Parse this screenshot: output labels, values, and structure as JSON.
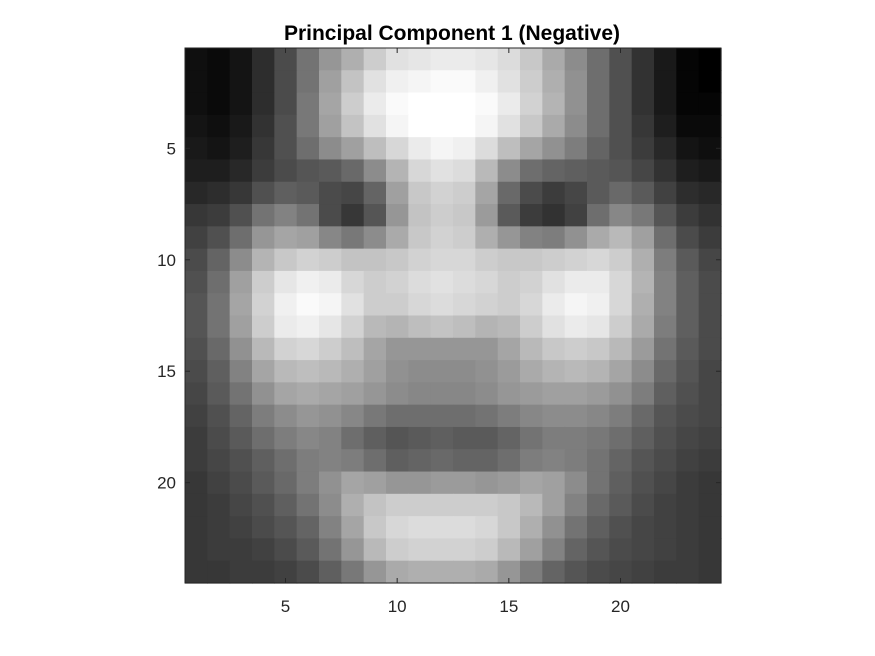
{
  "chart_data": {
    "type": "heatmap",
    "title": "Principal Component 1 (Negative)",
    "xlabel": "",
    "ylabel": "",
    "colormap": "gray",
    "xlim": [
      0.5,
      24.5
    ],
    "ylim": [
      0.5,
      24.5
    ],
    "y_direction": "reverse",
    "grid": false,
    "x_ticks": [
      5,
      10,
      15,
      20
    ],
    "y_ticks": [
      5,
      10,
      15,
      20
    ],
    "x_tick_labels": [
      "5",
      "10",
      "15",
      "20"
    ],
    "y_tick_labels": [
      "5",
      "10",
      "15",
      "20"
    ],
    "z_range": [
      0,
      255
    ],
    "values": [
      [
        15,
        10,
        20,
        45,
        75,
        115,
        150,
        175,
        205,
        225,
        230,
        235,
        235,
        230,
        220,
        200,
        170,
        140,
        110,
        80,
        50,
        25,
        5,
        0
      ],
      [
        15,
        10,
        20,
        45,
        75,
        115,
        160,
        195,
        225,
        240,
        245,
        250,
        250,
        240,
        225,
        205,
        175,
        145,
        110,
        80,
        50,
        25,
        5,
        0
      ],
      [
        15,
        10,
        20,
        45,
        75,
        120,
        165,
        205,
        235,
        250,
        255,
        255,
        255,
        250,
        235,
        210,
        180,
        145,
        110,
        80,
        50,
        25,
        5,
        5
      ],
      [
        20,
        15,
        25,
        50,
        80,
        120,
        160,
        195,
        225,
        245,
        255,
        255,
        255,
        245,
        225,
        200,
        170,
        140,
        110,
        80,
        55,
        30,
        10,
        10
      ],
      [
        25,
        20,
        30,
        55,
        80,
        110,
        140,
        160,
        190,
        215,
        235,
        245,
        240,
        220,
        190,
        165,
        145,
        125,
        100,
        80,
        60,
        40,
        20,
        15
      ],
      [
        30,
        30,
        40,
        60,
        75,
        85,
        90,
        105,
        140,
        180,
        215,
        225,
        220,
        185,
        140,
        110,
        100,
        95,
        90,
        85,
        70,
        50,
        30,
        25
      ],
      [
        40,
        45,
        55,
        80,
        95,
        90,
        75,
        70,
        100,
        160,
        200,
        210,
        205,
        165,
        105,
        75,
        60,
        70,
        90,
        105,
        90,
        65,
        45,
        40
      ],
      [
        55,
        60,
        80,
        115,
        130,
        115,
        75,
        55,
        85,
        150,
        195,
        205,
        200,
        155,
        90,
        60,
        50,
        65,
        110,
        135,
        120,
        85,
        60,
        50
      ],
      [
        65,
        80,
        110,
        150,
        165,
        160,
        135,
        120,
        140,
        170,
        200,
        210,
        205,
        175,
        150,
        130,
        125,
        145,
        170,
        185,
        160,
        110,
        75,
        60
      ],
      [
        75,
        100,
        140,
        180,
        200,
        210,
        205,
        195,
        195,
        200,
        210,
        215,
        215,
        205,
        200,
        200,
        205,
        210,
        215,
        205,
        175,
        125,
        90,
        70
      ],
      [
        80,
        110,
        160,
        205,
        230,
        240,
        235,
        215,
        205,
        210,
        220,
        225,
        220,
        215,
        205,
        210,
        225,
        235,
        235,
        215,
        180,
        130,
        95,
        75
      ],
      [
        85,
        115,
        165,
        210,
        240,
        250,
        245,
        225,
        205,
        205,
        215,
        220,
        215,
        210,
        205,
        215,
        235,
        245,
        240,
        215,
        175,
        130,
        95,
        75
      ],
      [
        85,
        115,
        160,
        205,
        235,
        240,
        230,
        210,
        185,
        180,
        190,
        195,
        190,
        180,
        185,
        205,
        225,
        235,
        230,
        205,
        170,
        125,
        95,
        75
      ],
      [
        80,
        105,
        145,
        185,
        210,
        215,
        205,
        190,
        165,
        150,
        150,
        150,
        150,
        150,
        165,
        185,
        200,
        205,
        200,
        185,
        155,
        115,
        90,
        75
      ],
      [
        75,
        95,
        130,
        165,
        185,
        190,
        185,
        175,
        160,
        145,
        140,
        140,
        140,
        145,
        155,
        170,
        180,
        185,
        180,
        165,
        140,
        105,
        85,
        70
      ],
      [
        70,
        90,
        115,
        145,
        165,
        170,
        165,
        160,
        150,
        140,
        135,
        135,
        135,
        140,
        150,
        155,
        160,
        160,
        155,
        145,
        125,
        95,
        80,
        70
      ],
      [
        65,
        80,
        100,
        125,
        140,
        150,
        145,
        135,
        120,
        110,
        110,
        110,
        110,
        115,
        125,
        135,
        140,
        140,
        135,
        125,
        105,
        85,
        75,
        70
      ],
      [
        60,
        75,
        90,
        110,
        125,
        135,
        130,
        110,
        95,
        85,
        90,
        95,
        90,
        90,
        100,
        115,
        125,
        125,
        120,
        110,
        95,
        80,
        70,
        65
      ],
      [
        60,
        70,
        80,
        95,
        110,
        125,
        130,
        125,
        110,
        95,
        100,
        105,
        100,
        100,
        110,
        125,
        130,
        125,
        115,
        100,
        85,
        75,
        65,
        60
      ],
      [
        55,
        65,
        75,
        90,
        105,
        125,
        145,
        165,
        160,
        150,
        150,
        155,
        155,
        150,
        155,
        165,
        160,
        140,
        115,
        95,
        80,
        70,
        60,
        55
      ],
      [
        55,
        60,
        70,
        80,
        95,
        115,
        140,
        175,
        195,
        205,
        205,
        205,
        205,
        205,
        200,
        185,
        160,
        130,
        105,
        90,
        75,
        65,
        60,
        55
      ],
      [
        55,
        60,
        65,
        75,
        85,
        100,
        130,
        165,
        200,
        215,
        220,
        220,
        220,
        215,
        200,
        175,
        145,
        115,
        95,
        80,
        70,
        65,
        60,
        55
      ],
      [
        55,
        60,
        60,
        65,
        75,
        90,
        115,
        150,
        185,
        205,
        210,
        210,
        210,
        205,
        185,
        160,
        130,
        100,
        85,
        75,
        70,
        65,
        60,
        55
      ],
      [
        55,
        55,
        60,
        60,
        65,
        75,
        95,
        120,
        150,
        170,
        175,
        175,
        175,
        170,
        150,
        125,
        100,
        85,
        75,
        70,
        65,
        60,
        60,
        55
      ]
    ]
  }
}
